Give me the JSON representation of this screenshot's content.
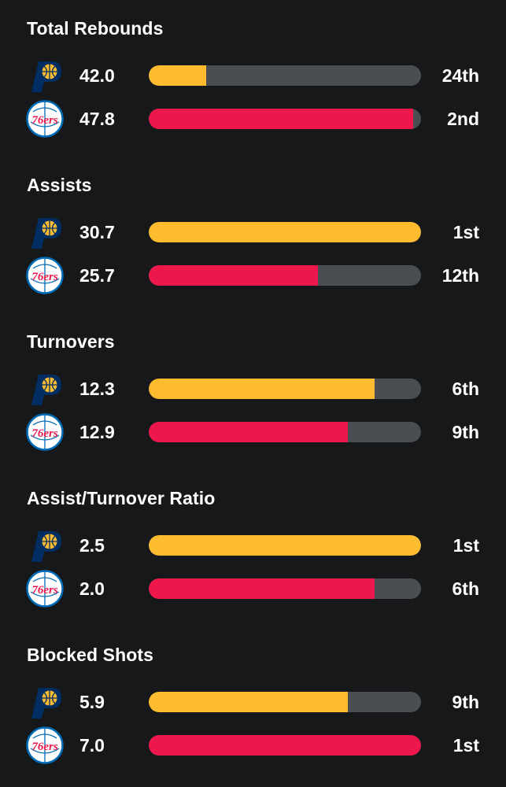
{
  "teams": [
    {
      "key": "pacers",
      "icon": "pacers-logo-icon",
      "color": "#fdbb30"
    },
    {
      "key": "76ers",
      "icon": "76ers-logo-icon",
      "color": "#ed174c"
    }
  ],
  "track_color": "#4a4d51",
  "sections": [
    {
      "title": "Total Rebounds",
      "rows": [
        {
          "team": "pacers",
          "value": "42.0",
          "rank": "24th",
          "fill_pct": 21
        },
        {
          "team": "76ers",
          "value": "47.8",
          "rank": "2nd",
          "fill_pct": 97
        }
      ]
    },
    {
      "title": "Assists",
      "rows": [
        {
          "team": "pacers",
          "value": "30.7",
          "rank": "1st",
          "fill_pct": 100
        },
        {
          "team": "76ers",
          "value": "25.7",
          "rank": "12th",
          "fill_pct": 62
        }
      ]
    },
    {
      "title": "Turnovers",
      "rows": [
        {
          "team": "pacers",
          "value": "12.3",
          "rank": "6th",
          "fill_pct": 83
        },
        {
          "team": "76ers",
          "value": "12.9",
          "rank": "9th",
          "fill_pct": 73
        }
      ]
    },
    {
      "title": "Assist/Turnover Ratio",
      "rows": [
        {
          "team": "pacers",
          "value": "2.5",
          "rank": "1st",
          "fill_pct": 100
        },
        {
          "team": "76ers",
          "value": "2.0",
          "rank": "6th",
          "fill_pct": 83
        }
      ]
    },
    {
      "title": "Blocked Shots",
      "rows": [
        {
          "team": "pacers",
          "value": "5.9",
          "rank": "9th",
          "fill_pct": 73
        },
        {
          "team": "76ers",
          "value": "7.0",
          "rank": "1st",
          "fill_pct": 100
        }
      ]
    }
  ]
}
